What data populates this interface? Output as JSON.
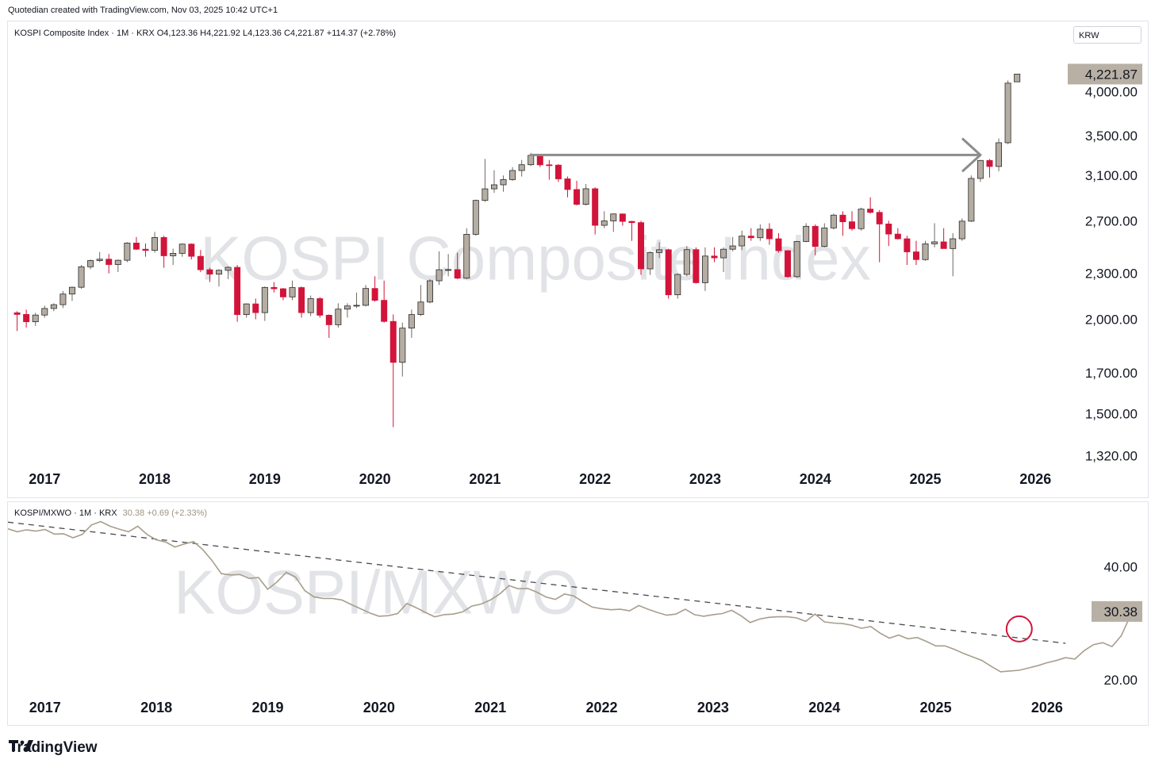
{
  "credit": "Quotedian created with TradingView.com, Nov 03, 2025 10:42 UTC+1",
  "brand": {
    "name": "TradingView",
    "icon": "tradingview-logo-icon"
  },
  "colors": {
    "up": "#b5ada2",
    "down": "#d2143a",
    "wick_up": "#6f6a63",
    "arrow": "#8c8c8c",
    "ratio_line": "#a89e8c",
    "circle": "#d2143a",
    "label_bg": "#b8b0a4"
  },
  "main_pane": {
    "legend": "KOSPI Composite Index · 1M · KRX  O4,123.36  H4,221.92  L4,123.36  C4,221.87  +114.37 (+2.78%)",
    "currency": "KRW",
    "watermark": "KOSPI Composite Index",
    "last_price": "4,221.87",
    "y_ticks": [
      "4,000.00",
      "3,500.00",
      "3,100.00",
      "2,700.00",
      "2,300.00",
      "2,000.00",
      "1,700.00",
      "1,500.00",
      "1,320.00"
    ],
    "x_ticks": [
      "2017",
      "2018",
      "2019",
      "2020",
      "2021",
      "2022",
      "2023",
      "2024",
      "2025",
      "2026"
    ]
  },
  "ratio_pane": {
    "legend_title": "KOSPI/MXWO · 1M · KRX",
    "legend_values": "30.38  +0.69 (+2.33%)",
    "watermark": "KOSPI/MXWO",
    "last_value": "30.38",
    "y_ticks": [
      "40.00",
      "20.00"
    ],
    "x_ticks": [
      "2017",
      "2018",
      "2019",
      "2020",
      "2021",
      "2022",
      "2023",
      "2024",
      "2025",
      "2026"
    ]
  },
  "chart_data": [
    {
      "type": "candlestick",
      "title": "KOSPI Composite Index · 1M · KRX",
      "scale": "log",
      "ylim": [
        1250,
        4500
      ],
      "x_range": [
        "2016-09",
        "2026-04"
      ],
      "candles": [
        {
          "t": "2016-10",
          "o": 2040,
          "h": 2050,
          "l": 1930,
          "c": 2030
        },
        {
          "t": "2016-11",
          "o": 2030,
          "h": 2060,
          "l": 1950,
          "c": 1985
        },
        {
          "t": "2016-12",
          "o": 1985,
          "h": 2040,
          "l": 1960,
          "c": 2026
        },
        {
          "t": "2017-01",
          "o": 2026,
          "h": 2085,
          "l": 2010,
          "c": 2067
        },
        {
          "t": "2017-02",
          "o": 2067,
          "h": 2100,
          "l": 2050,
          "c": 2091
        },
        {
          "t": "2017-03",
          "o": 2091,
          "h": 2180,
          "l": 2070,
          "c": 2160
        },
        {
          "t": "2017-04",
          "o": 2160,
          "h": 2210,
          "l": 2115,
          "c": 2205
        },
        {
          "t": "2017-05",
          "o": 2205,
          "h": 2360,
          "l": 2195,
          "c": 2347
        },
        {
          "t": "2017-06",
          "o": 2347,
          "h": 2400,
          "l": 2330,
          "c": 2392
        },
        {
          "t": "2017-07",
          "o": 2392,
          "h": 2455,
          "l": 2380,
          "c": 2402
        },
        {
          "t": "2017-08",
          "o": 2402,
          "h": 2440,
          "l": 2300,
          "c": 2363
        },
        {
          "t": "2017-09",
          "o": 2363,
          "h": 2400,
          "l": 2310,
          "c": 2394
        },
        {
          "t": "2017-10",
          "o": 2394,
          "h": 2530,
          "l": 2380,
          "c": 2523
        },
        {
          "t": "2017-11",
          "o": 2523,
          "h": 2570,
          "l": 2470,
          "c": 2476
        },
        {
          "t": "2017-12",
          "o": 2476,
          "h": 2520,
          "l": 2420,
          "c": 2467
        },
        {
          "t": "2018-01",
          "o": 2467,
          "h": 2610,
          "l": 2450,
          "c": 2566
        },
        {
          "t": "2018-02",
          "o": 2566,
          "h": 2580,
          "l": 2340,
          "c": 2427
        },
        {
          "t": "2018-03",
          "o": 2427,
          "h": 2480,
          "l": 2360,
          "c": 2445
        },
        {
          "t": "2018-04",
          "o": 2445,
          "h": 2520,
          "l": 2420,
          "c": 2515
        },
        {
          "t": "2018-05",
          "o": 2515,
          "h": 2520,
          "l": 2400,
          "c": 2423
        },
        {
          "t": "2018-06",
          "o": 2423,
          "h": 2470,
          "l": 2310,
          "c": 2326
        },
        {
          "t": "2018-07",
          "o": 2326,
          "h": 2340,
          "l": 2240,
          "c": 2295
        },
        {
          "t": "2018-08",
          "o": 2295,
          "h": 2330,
          "l": 2210,
          "c": 2322
        },
        {
          "t": "2018-09",
          "o": 2322,
          "h": 2350,
          "l": 2260,
          "c": 2343
        },
        {
          "t": "2018-10",
          "o": 2343,
          "h": 2360,
          "l": 1985,
          "c": 2029
        },
        {
          "t": "2018-11",
          "o": 2029,
          "h": 2100,
          "l": 2010,
          "c": 2096
        },
        {
          "t": "2018-12",
          "o": 2096,
          "h": 2130,
          "l": 2000,
          "c": 2041
        },
        {
          "t": "2019-01",
          "o": 2041,
          "h": 2210,
          "l": 1990,
          "c": 2204
        },
        {
          "t": "2019-02",
          "o": 2204,
          "h": 2240,
          "l": 2170,
          "c": 2195
        },
        {
          "t": "2019-03",
          "o": 2195,
          "h": 2200,
          "l": 2120,
          "c": 2141
        },
        {
          "t": "2019-04",
          "o": 2141,
          "h": 2250,
          "l": 2120,
          "c": 2203
        },
        {
          "t": "2019-05",
          "o": 2203,
          "h": 2210,
          "l": 2010,
          "c": 2041
        },
        {
          "t": "2019-06",
          "o": 2041,
          "h": 2150,
          "l": 2020,
          "c": 2130
        },
        {
          "t": "2019-07",
          "o": 2130,
          "h": 2140,
          "l": 2010,
          "c": 2025
        },
        {
          "t": "2019-08",
          "o": 2025,
          "h": 2030,
          "l": 1890,
          "c": 1967
        },
        {
          "t": "2019-09",
          "o": 1967,
          "h": 2100,
          "l": 1950,
          "c": 2063
        },
        {
          "t": "2019-10",
          "o": 2063,
          "h": 2100,
          "l": 2010,
          "c": 2083
        },
        {
          "t": "2019-11",
          "o": 2083,
          "h": 2170,
          "l": 2070,
          "c": 2087
        },
        {
          "t": "2019-12",
          "o": 2087,
          "h": 2220,
          "l": 2080,
          "c": 2197
        },
        {
          "t": "2020-01",
          "o": 2197,
          "h": 2280,
          "l": 2110,
          "c": 2119
        },
        {
          "t": "2020-02",
          "o": 2119,
          "h": 2250,
          "l": 1980,
          "c": 1987
        },
        {
          "t": "2020-03",
          "o": 1987,
          "h": 2030,
          "l": 1440,
          "c": 1754
        },
        {
          "t": "2020-04",
          "o": 1754,
          "h": 1980,
          "l": 1680,
          "c": 1947
        },
        {
          "t": "2020-05",
          "o": 1947,
          "h": 2060,
          "l": 1890,
          "c": 2029
        },
        {
          "t": "2020-06",
          "o": 2029,
          "h": 2220,
          "l": 2020,
          "c": 2108
        },
        {
          "t": "2020-07",
          "o": 2108,
          "h": 2260,
          "l": 2100,
          "c": 2249
        },
        {
          "t": "2020-08",
          "o": 2249,
          "h": 2460,
          "l": 2220,
          "c": 2326
        },
        {
          "t": "2020-09",
          "o": 2326,
          "h": 2440,
          "l": 2280,
          "c": 2327
        },
        {
          "t": "2020-10",
          "o": 2327,
          "h": 2450,
          "l": 2260,
          "c": 2267
        },
        {
          "t": "2020-11",
          "o": 2267,
          "h": 2640,
          "l": 2260,
          "c": 2591
        },
        {
          "t": "2020-12",
          "o": 2591,
          "h": 2880,
          "l": 2580,
          "c": 2873
        },
        {
          "t": "2021-01",
          "o": 2873,
          "h": 3260,
          "l": 2860,
          "c": 2976
        },
        {
          "t": "2021-02",
          "o": 2976,
          "h": 3150,
          "l": 2940,
          "c": 3013
        },
        {
          "t": "2021-03",
          "o": 3013,
          "h": 3100,
          "l": 2950,
          "c": 3061
        },
        {
          "t": "2021-04",
          "o": 3061,
          "h": 3180,
          "l": 3050,
          "c": 3147
        },
        {
          "t": "2021-05",
          "o": 3147,
          "h": 3250,
          "l": 3090,
          "c": 3203
        },
        {
          "t": "2021-06",
          "o": 3203,
          "h": 3320,
          "l": 3190,
          "c": 3296
        },
        {
          "t": "2021-07",
          "o": 3296,
          "h": 3310,
          "l": 3180,
          "c": 3202
        },
        {
          "t": "2021-08",
          "o": 3202,
          "h": 3250,
          "l": 3060,
          "c": 3199
        },
        {
          "t": "2021-09",
          "o": 3199,
          "h": 3210,
          "l": 3040,
          "c": 3068
        },
        {
          "t": "2021-10",
          "o": 3068,
          "h": 3090,
          "l": 2900,
          "c": 2970
        },
        {
          "t": "2021-11",
          "o": 2970,
          "h": 3050,
          "l": 2830,
          "c": 2839
        },
        {
          "t": "2021-12",
          "o": 2839,
          "h": 3020,
          "l": 2830,
          "c": 2977
        },
        {
          "t": "2022-01",
          "o": 2977,
          "h": 2990,
          "l": 2590,
          "c": 2663
        },
        {
          "t": "2022-02",
          "o": 2663,
          "h": 2780,
          "l": 2640,
          "c": 2699
        },
        {
          "t": "2022-03",
          "o": 2699,
          "h": 2760,
          "l": 2610,
          "c": 2757
        },
        {
          "t": "2022-04",
          "o": 2757,
          "h": 2760,
          "l": 2660,
          "c": 2695
        },
        {
          "t": "2022-05",
          "o": 2695,
          "h": 2700,
          "l": 2540,
          "c": 2685
        },
        {
          "t": "2022-06",
          "o": 2685,
          "h": 2700,
          "l": 2290,
          "c": 2332
        },
        {
          "t": "2022-07",
          "o": 2332,
          "h": 2460,
          "l": 2290,
          "c": 2451
        },
        {
          "t": "2022-08",
          "o": 2451,
          "h": 2530,
          "l": 2410,
          "c": 2472
        },
        {
          "t": "2022-09",
          "o": 2472,
          "h": 2480,
          "l": 2130,
          "c": 2155
        },
        {
          "t": "2022-10",
          "o": 2155,
          "h": 2300,
          "l": 2130,
          "c": 2293
        },
        {
          "t": "2022-11",
          "o": 2293,
          "h": 2500,
          "l": 2280,
          "c": 2473
        },
        {
          "t": "2022-12",
          "o": 2473,
          "h": 2490,
          "l": 2230,
          "c": 2236
        },
        {
          "t": "2023-01",
          "o": 2236,
          "h": 2490,
          "l": 2180,
          "c": 2425
        },
        {
          "t": "2023-02",
          "o": 2425,
          "h": 2490,
          "l": 2380,
          "c": 2412
        },
        {
          "t": "2023-03",
          "o": 2412,
          "h": 2490,
          "l": 2310,
          "c": 2476
        },
        {
          "t": "2023-04",
          "o": 2476,
          "h": 2570,
          "l": 2460,
          "c": 2501
        },
        {
          "t": "2023-05",
          "o": 2501,
          "h": 2620,
          "l": 2470,
          "c": 2577
        },
        {
          "t": "2023-06",
          "o": 2577,
          "h": 2640,
          "l": 2540,
          "c": 2564
        },
        {
          "t": "2023-07",
          "o": 2564,
          "h": 2670,
          "l": 2540,
          "c": 2632
        },
        {
          "t": "2023-08",
          "o": 2632,
          "h": 2680,
          "l": 2510,
          "c": 2556
        },
        {
          "t": "2023-09",
          "o": 2556,
          "h": 2600,
          "l": 2450,
          "c": 2465
        },
        {
          "t": "2023-10",
          "o": 2465,
          "h": 2470,
          "l": 2270,
          "c": 2277
        },
        {
          "t": "2023-11",
          "o": 2277,
          "h": 2540,
          "l": 2270,
          "c": 2535
        },
        {
          "t": "2023-12",
          "o": 2535,
          "h": 2680,
          "l": 2530,
          "c": 2655
        },
        {
          "t": "2024-01",
          "o": 2655,
          "h": 2670,
          "l": 2430,
          "c": 2497
        },
        {
          "t": "2024-02",
          "o": 2497,
          "h": 2680,
          "l": 2490,
          "c": 2642
        },
        {
          "t": "2024-03",
          "o": 2642,
          "h": 2760,
          "l": 2630,
          "c": 2747
        },
        {
          "t": "2024-04",
          "o": 2747,
          "h": 2780,
          "l": 2580,
          "c": 2692
        },
        {
          "t": "2024-05",
          "o": 2692,
          "h": 2780,
          "l": 2620,
          "c": 2636
        },
        {
          "t": "2024-06",
          "o": 2636,
          "h": 2810,
          "l": 2620,
          "c": 2798
        },
        {
          "t": "2024-07",
          "o": 2798,
          "h": 2900,
          "l": 2760,
          "c": 2770
        },
        {
          "t": "2024-08",
          "o": 2770,
          "h": 2790,
          "l": 2380,
          "c": 2674
        },
        {
          "t": "2024-09",
          "o": 2674,
          "h": 2700,
          "l": 2500,
          "c": 2593
        },
        {
          "t": "2024-10",
          "o": 2593,
          "h": 2640,
          "l": 2550,
          "c": 2556
        },
        {
          "t": "2024-11",
          "o": 2556,
          "h": 2580,
          "l": 2360,
          "c": 2456
        },
        {
          "t": "2024-12",
          "o": 2456,
          "h": 2540,
          "l": 2360,
          "c": 2399
        },
        {
          "t": "2025-01",
          "o": 2399,
          "h": 2540,
          "l": 2390,
          "c": 2517
        },
        {
          "t": "2025-02",
          "o": 2517,
          "h": 2680,
          "l": 2490,
          "c": 2532
        },
        {
          "t": "2025-03",
          "o": 2532,
          "h": 2640,
          "l": 2480,
          "c": 2481
        },
        {
          "t": "2025-04",
          "o": 2481,
          "h": 2600,
          "l": 2280,
          "c": 2556
        },
        {
          "t": "2025-05",
          "o": 2556,
          "h": 2720,
          "l": 2540,
          "c": 2697
        },
        {
          "t": "2025-06",
          "o": 2697,
          "h": 3100,
          "l": 2690,
          "c": 3072
        },
        {
          "t": "2025-07",
          "o": 3072,
          "h": 3250,
          "l": 3040,
          "c": 3245
        },
        {
          "t": "2025-08",
          "o": 3245,
          "h": 3260,
          "l": 3080,
          "c": 3186
        },
        {
          "t": "2025-09",
          "o": 3186,
          "h": 3470,
          "l": 3140,
          "c": 3425
        },
        {
          "t": "2025-10",
          "o": 3425,
          "h": 4140,
          "l": 3410,
          "c": 4107
        },
        {
          "t": "2025-11",
          "o": 4123.36,
          "h": 4221.92,
          "l": 4123.36,
          "c": 4221.87
        }
      ],
      "annotation_arrow": {
        "from": {
          "t": "2021-06",
          "v": 3300
        },
        "to": {
          "t": "2025-07",
          "v": 3300
        }
      }
    },
    {
      "type": "line",
      "title": "KOSPI/MXWO · 1M · KRX",
      "scale": "log",
      "ylim": [
        18.5,
        56
      ],
      "x_range": [
        "2016-09",
        "2026-04"
      ],
      "start": "2016-09",
      "values": [
        50.4,
        49.5,
        50.1,
        49.7,
        50.2,
        48.8,
        48.9,
        47.7,
        48.7,
        51.6,
        52.7,
        51.2,
        50.3,
        49.5,
        51.2,
        48.7,
        47.1,
        46.5,
        45.1,
        45.9,
        46.6,
        44.4,
        41.5,
        38.3,
        38.0,
        38.1,
        37.2,
        37.4,
        34.8,
        36.4,
        38.6,
        37.5,
        34.5,
        33.2,
        32.9,
        32.9,
        32.6,
        31.7,
        30.9,
        30.1,
        29.5,
        29.6,
        30.0,
        31.9,
        31.1,
        30.2,
        29.4,
        29.8,
        29.9,
        30.3,
        31.4,
        31.8,
        32.6,
        33.8,
        35.6,
        34.9,
        35.0,
        34.2,
        33.2,
        32.7,
        33.8,
        33.4,
        32.2,
        31.2,
        30.9,
        30.7,
        30.8,
        30.5,
        31.5,
        30.8,
        30.2,
        29.7,
        29.9,
        30.8,
        29.8,
        29.5,
        29.8,
        30.0,
        30.6,
        29.6,
        28.4,
        29.0,
        29.3,
        29.4,
        29.4,
        29.2,
        28.6,
        29.9,
        28.5,
        28.3,
        28.2,
        27.9,
        27.4,
        27.7,
        26.6,
        25.8,
        26.3,
        25.7,
        25.9,
        25.3,
        24.6,
        24.6,
        24.1,
        23.5,
        23.0,
        22.5,
        21.7,
        21.0,
        21.1,
        21.2,
        21.5,
        21.8,
        22.2,
        22.5,
        22.9,
        22.7,
        23.9,
        24.8,
        25.1,
        24.5,
        26.2,
        29.7,
        30.38
      ],
      "trendline": {
        "from": {
          "t": "2016-09",
          "v": 52.5
        },
        "to": {
          "t": "2026-03",
          "v": 25.0
        },
        "style": "dashed"
      },
      "highlight_circle": {
        "t": "2025-10",
        "v": 27.3
      }
    }
  ]
}
